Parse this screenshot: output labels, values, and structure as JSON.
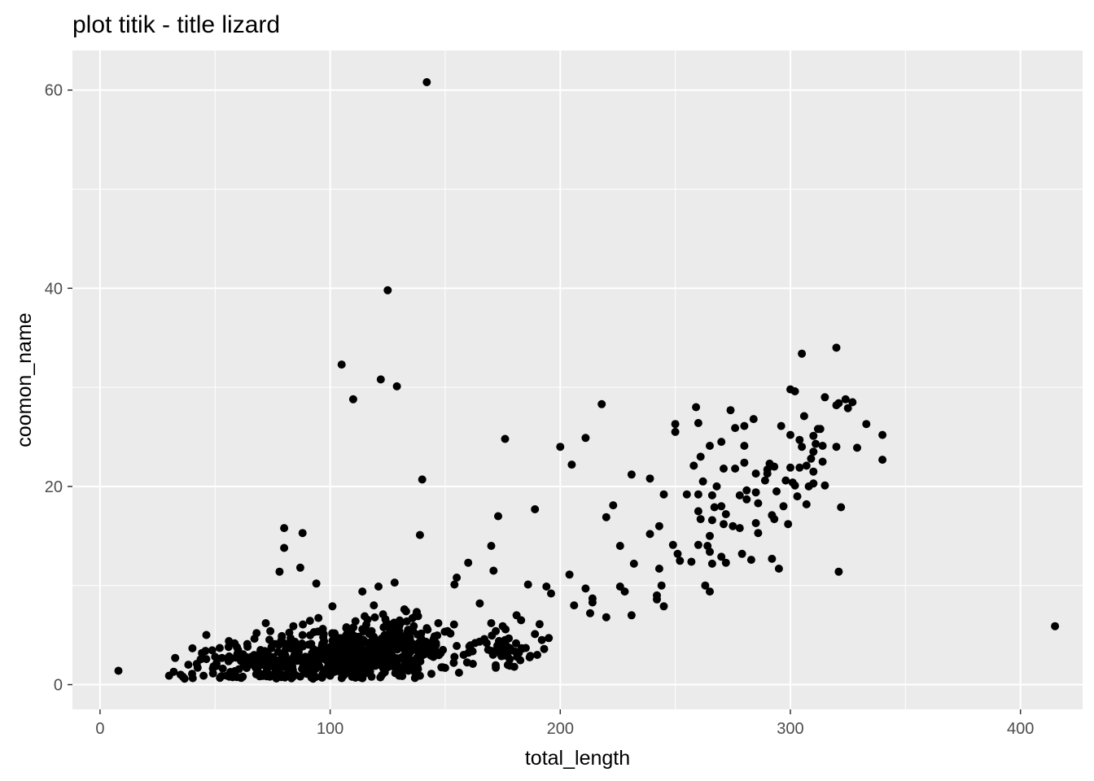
{
  "chart_data": {
    "type": "scatter",
    "title": "plot titik - title lizard",
    "xlabel": "total_length",
    "ylabel": "coomon_name",
    "xlim": [
      -12,
      427
    ],
    "ylim": [
      -2.5,
      64
    ],
    "x_ticks": [
      0,
      100,
      200,
      300,
      400
    ],
    "x_tick_labels": [
      "0",
      "100",
      "200",
      "300",
      "400"
    ],
    "y_ticks": [
      0,
      20,
      40,
      60
    ],
    "y_tick_labels": [
      "0",
      "20",
      "40",
      "60"
    ],
    "grid": true,
    "colors": {
      "panel": "#ebebeb",
      "grid": "#ffffff",
      "point": "#000000",
      "tick_label": "#4d4d4d",
      "tick_mark": "#333333"
    },
    "points": [
      [
        8,
        1.4
      ],
      [
        142,
        60.8
      ],
      [
        125,
        39.8
      ],
      [
        105,
        32.3
      ],
      [
        122,
        30.8
      ],
      [
        129,
        30.1
      ],
      [
        110,
        28.8
      ],
      [
        140,
        20.7
      ],
      [
        139,
        15.1
      ],
      [
        80,
        15.8
      ],
      [
        80,
        13.8
      ],
      [
        88,
        15.3
      ],
      [
        78,
        11.4
      ],
      [
        87,
        11.8
      ],
      [
        94,
        10.2
      ],
      [
        101,
        7.9
      ],
      [
        114,
        9.4
      ],
      [
        121,
        9.9
      ],
      [
        128,
        10.3
      ],
      [
        119,
        8.0
      ],
      [
        123,
        7.1
      ],
      [
        133,
        7.4
      ],
      [
        137,
        6.9
      ],
      [
        124,
        6.6
      ],
      [
        155,
        10.8
      ],
      [
        154,
        10.1
      ],
      [
        160,
        12.3
      ],
      [
        173,
        17.0
      ],
      [
        170,
        14.0
      ],
      [
        171,
        11.5
      ],
      [
        176,
        24.8
      ],
      [
        165,
        8.2
      ],
      [
        186,
        10.1
      ],
      [
        189,
        17.7
      ],
      [
        200,
        24.0
      ],
      [
        205,
        22.2
      ],
      [
        211,
        24.9
      ],
      [
        218,
        28.3
      ],
      [
        204,
        11.1
      ],
      [
        211,
        9.7
      ],
      [
        214,
        8.7
      ],
      [
        206,
        8.0
      ],
      [
        214,
        8.3
      ],
      [
        220,
        16.9
      ],
      [
        223,
        18.1
      ],
      [
        226,
        14.0
      ],
      [
        226,
        9.9
      ],
      [
        228,
        9.4
      ],
      [
        213,
        7.2
      ],
      [
        220,
        6.8
      ],
      [
        231,
        21.2
      ],
      [
        232,
        12.2
      ],
      [
        231,
        7.0
      ],
      [
        239,
        20.8
      ],
      [
        239,
        15.2
      ],
      [
        243,
        16.0
      ],
      [
        243,
        11.7
      ],
      [
        245,
        19.2
      ],
      [
        242,
        9.0
      ],
      [
        242,
        8.6
      ],
      [
        244,
        10.0
      ],
      [
        245,
        7.9
      ],
      [
        250,
        26.3
      ],
      [
        250,
        25.5
      ],
      [
        249,
        14.1
      ],
      [
        251,
        13.2
      ],
      [
        252,
        12.5
      ],
      [
        255,
        19.2
      ],
      [
        257,
        12.4
      ],
      [
        259,
        28.0
      ],
      [
        260,
        26.4
      ],
      [
        258,
        22.1
      ],
      [
        261,
        23.0
      ],
      [
        262,
        20.5
      ],
      [
        260,
        19.2
      ],
      [
        260,
        17.5
      ],
      [
        261,
        16.7
      ],
      [
        260,
        14.1
      ],
      [
        263,
        10.0
      ],
      [
        265,
        24.1
      ],
      [
        266,
        19.1
      ],
      [
        267,
        17.9
      ],
      [
        268,
        20.0
      ],
      [
        266,
        16.6
      ],
      [
        265,
        15.0
      ],
      [
        264,
        14.0
      ],
      [
        265,
        13.4
      ],
      [
        265,
        9.4
      ],
      [
        266,
        12.2
      ],
      [
        270,
        24.5
      ],
      [
        271,
        21.8
      ],
      [
        270,
        18.0
      ],
      [
        271,
        16.2
      ],
      [
        272,
        17.2
      ],
      [
        270,
        12.9
      ],
      [
        272,
        12.3
      ],
      [
        274,
        27.7
      ],
      [
        276,
        25.9
      ],
      [
        276,
        21.8
      ],
      [
        275,
        16.0
      ],
      [
        278,
        15.8
      ],
      [
        279,
        13.2
      ],
      [
        278,
        19.1
      ],
      [
        280,
        26.1
      ],
      [
        280,
        24.1
      ],
      [
        280,
        22.4
      ],
      [
        281,
        19.6
      ],
      [
        281,
        18.7
      ],
      [
        283,
        12.6
      ],
      [
        284,
        26.8
      ],
      [
        285,
        21.3
      ],
      [
        285,
        19.4
      ],
      [
        286,
        18.3
      ],
      [
        285,
        16.3
      ],
      [
        286,
        15.3
      ],
      [
        289,
        20.6
      ],
      [
        290,
        21.7
      ],
      [
        290,
        21.3
      ],
      [
        291,
        22.3
      ],
      [
        292,
        17.1
      ],
      [
        293,
        22.0
      ],
      [
        293,
        16.7
      ],
      [
        294,
        19.5
      ],
      [
        292,
        12.7
      ],
      [
        295,
        11.7
      ],
      [
        296,
        26.1
      ],
      [
        297,
        18.0
      ],
      [
        298,
        20.6
      ],
      [
        299,
        16.2
      ],
      [
        300,
        29.8
      ],
      [
        302,
        29.6
      ],
      [
        300,
        25.2
      ],
      [
        300,
        21.9
      ],
      [
        301,
        20.4
      ],
      [
        302,
        20.1
      ],
      [
        303,
        19.0
      ],
      [
        304,
        24.7
      ],
      [
        304,
        21.9
      ],
      [
        305,
        33.4
      ],
      [
        305,
        24.0
      ],
      [
        306,
        27.1
      ],
      [
        307,
        22.1
      ],
      [
        307,
        18.2
      ],
      [
        308,
        20.0
      ],
      [
        309,
        22.8
      ],
      [
        310,
        21.5
      ],
      [
        310,
        25.1
      ],
      [
        310,
        23.5
      ],
      [
        310,
        20.3
      ],
      [
        311,
        24.3
      ],
      [
        312,
        25.8
      ],
      [
        313,
        25.8
      ],
      [
        314,
        24.1
      ],
      [
        314,
        22.5
      ],
      [
        315,
        20.1
      ],
      [
        315,
        29.0
      ],
      [
        320,
        34.0
      ],
      [
        320,
        28.2
      ],
      [
        321,
        28.4
      ],
      [
        320,
        24.0
      ],
      [
        321,
        11.4
      ],
      [
        322,
        17.9
      ],
      [
        324,
        28.8
      ],
      [
        325,
        27.9
      ],
      [
        327,
        28.5
      ],
      [
        329,
        23.9
      ],
      [
        333,
        26.3
      ],
      [
        340,
        25.2
      ],
      [
        340,
        22.7
      ],
      [
        415,
        5.9
      ],
      [
        189,
        5.1
      ],
      [
        191,
        6.1
      ],
      [
        194,
        9.9
      ],
      [
        196,
        9.2
      ],
      [
        192,
        4.5
      ],
      [
        193,
        3.6
      ],
      [
        195,
        4.7
      ],
      [
        183,
        6.5
      ],
      [
        181,
        7.0
      ],
      [
        185,
        3.7
      ],
      [
        187,
        2.9
      ],
      [
        190,
        3.0
      ],
      [
        180,
        1.8
      ],
      [
        172,
        1.7
      ],
      [
        162,
        2.1
      ],
      [
        154,
        2.8
      ],
      [
        156,
        1.2
      ],
      [
        144,
        1.1
      ],
      [
        139,
        0.9
      ],
      [
        134,
        1.4
      ],
      [
        130,
        0.9
      ],
      [
        118,
        0.8
      ],
      [
        111,
        0.7
      ],
      [
        100,
        0.9
      ],
      [
        92,
        0.8
      ],
      [
        82,
        1.0
      ],
      [
        74,
        0.9
      ],
      [
        62,
        0.8
      ],
      [
        55,
        0.9
      ],
      [
        45,
        0.9
      ],
      [
        36,
        0.8
      ],
      [
        30,
        0.9
      ],
      [
        32,
        1.3
      ],
      [
        35,
        1.0
      ],
      [
        40,
        1.1
      ],
      [
        42,
        2.1
      ],
      [
        50,
        2.8
      ],
      [
        52,
        3.7
      ],
      [
        56,
        4.4
      ],
      [
        60,
        3.5
      ],
      [
        64,
        4.1
      ],
      [
        68,
        5.2
      ],
      [
        72,
        6.2
      ],
      [
        74,
        5.4
      ],
      [
        76,
        4.1
      ],
      [
        79,
        4.9
      ],
      [
        84,
        5.9
      ],
      [
        88,
        5.0
      ],
      [
        93,
        5.3
      ],
      [
        97,
        4.8
      ],
      [
        101,
        5.1
      ],
      [
        107,
        5.7
      ],
      [
        111,
        6.4
      ],
      [
        115,
        6.9
      ],
      [
        118,
        5.4
      ],
      [
        126,
        5.7
      ],
      [
        131,
        6.3
      ],
      [
        136,
        5.4
      ],
      [
        142,
        5.7
      ],
      [
        147,
        6.2
      ],
      [
        151,
        5.4
      ],
      [
        145,
        4.6
      ],
      [
        146,
        4.2
      ],
      [
        149,
        3.5
      ],
      [
        155,
        3.9
      ],
      [
        158,
        3.0
      ],
      [
        163,
        4.2
      ],
      [
        167,
        4.6
      ],
      [
        170,
        6.2
      ],
      [
        172,
        5.4
      ],
      [
        175,
        5.9
      ],
      [
        176,
        4.5
      ],
      [
        178,
        3.7
      ],
      [
        170,
        3.4
      ],
      [
        182,
        3.2
      ]
    ],
    "dense_clusters": [
      {
        "cx": 80,
        "cy": 2.2,
        "sx": 22,
        "sy": 1.0,
        "n": 240
      },
      {
        "cx": 112,
        "cy": 3.2,
        "sx": 14,
        "sy": 1.3,
        "n": 280
      },
      {
        "cx": 132,
        "cy": 3.8,
        "sx": 9,
        "sy": 1.4,
        "n": 120
      },
      {
        "cx": 175,
        "cy": 3.5,
        "sx": 7,
        "sy": 0.9,
        "n": 40
      }
    ]
  }
}
